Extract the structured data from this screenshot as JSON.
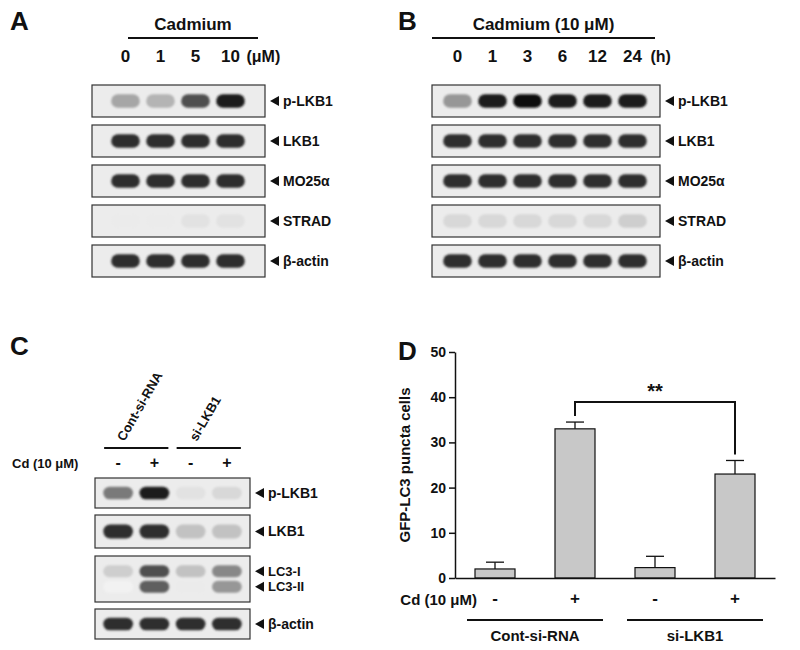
{
  "blots": [
    {
      "panel": "A",
      "title": "Cadmium",
      "lanes": [
        "0",
        "1",
        "5",
        "10"
      ],
      "unit": "(μM)",
      "rows": [
        {
          "label": "p-LKB1",
          "intensity": [
            0.45,
            0.4,
            0.75,
            0.9
          ]
        },
        {
          "label": "LKB1",
          "intensity": [
            0.85,
            0.85,
            0.85,
            0.85
          ]
        },
        {
          "label": "MO25α",
          "intensity": [
            0.85,
            0.85,
            0.85,
            0.85
          ]
        },
        {
          "label": "STRAD",
          "intensity": [
            0.15,
            0.15,
            0.2,
            0.2
          ]
        },
        {
          "label": "β-actin",
          "intensity": [
            0.85,
            0.85,
            0.85,
            0.85
          ]
        }
      ]
    },
    {
      "panel": "B",
      "title": "Cadmium (10 μM)",
      "lanes": [
        "0",
        "1",
        "3",
        "6",
        "12",
        "24"
      ],
      "unit": "(h)",
      "rows": [
        {
          "label": "p-LKB1",
          "intensity": [
            0.5,
            0.9,
            0.95,
            0.9,
            0.9,
            0.9
          ]
        },
        {
          "label": "LKB1",
          "intensity": [
            0.85,
            0.85,
            0.85,
            0.85,
            0.85,
            0.85
          ]
        },
        {
          "label": "MO25α",
          "intensity": [
            0.85,
            0.85,
            0.85,
            0.85,
            0.85,
            0.85
          ]
        },
        {
          "label": "STRAD",
          "intensity": [
            0.25,
            0.25,
            0.25,
            0.25,
            0.25,
            0.3
          ]
        },
        {
          "label": "β-actin",
          "intensity": [
            0.85,
            0.85,
            0.85,
            0.85,
            0.85,
            0.85
          ]
        }
      ]
    },
    {
      "panel": "C",
      "groups": [
        "Cont-si-RNA",
        "si-LKB1"
      ],
      "treatment": "Cd (10 μM)",
      "lanes": [
        "-",
        "+",
        "-",
        "+"
      ],
      "rows": [
        {
          "label": "p-LKB1",
          "intensity": [
            0.6,
            0.9,
            0.2,
            0.25
          ]
        },
        {
          "label": "LKB1",
          "intensity": [
            0.85,
            0.85,
            0.35,
            0.35
          ]
        },
        {
          "bands": [
            {
              "label": "LC3-I",
              "intensity": [
                0.3,
                0.75,
                0.35,
                0.55
              ]
            },
            {
              "label": "LC3-II",
              "intensity": [
                0.1,
                0.7,
                0.15,
                0.5
              ]
            }
          ]
        },
        {
          "label": "β-actin",
          "intensity": [
            0.85,
            0.85,
            0.85,
            0.85
          ]
        }
      ]
    }
  ],
  "chart_data": {
    "type": "bar",
    "panel": "D",
    "categories": [
      "-",
      "+",
      "-",
      "+"
    ],
    "values": [
      2,
      33,
      2.3,
      23
    ],
    "errors": [
      1.5,
      1.5,
      2.5,
      3
    ],
    "color": "#c8c8c8",
    "ylim": [
      0,
      50
    ],
    "yticks": [
      0,
      10,
      20,
      30,
      40,
      50
    ],
    "grid": false,
    "y_label": "GFP-LC3 puncta cells",
    "x_label": "Cd (10 μM)",
    "groups": [
      "Cont-si-RNA",
      "si-LKB1"
    ],
    "significance": {
      "pair": [
        1,
        3
      ],
      "label": "**"
    }
  }
}
